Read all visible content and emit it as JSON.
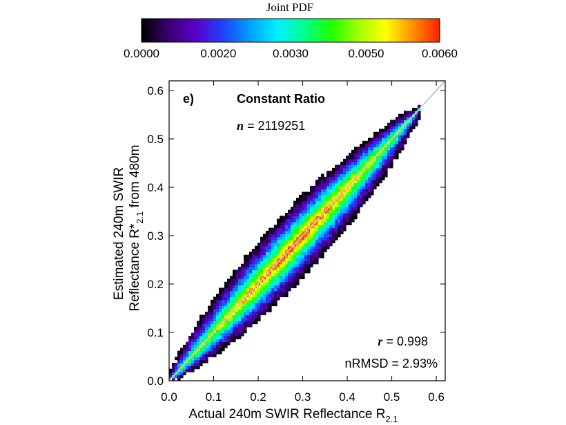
{
  "colorbar": {
    "title": "Joint PDF",
    "ticks": [
      "0.0000",
      "0.0020",
      "0.0030",
      "0.0050",
      "0.0060"
    ],
    "colors": [
      "#000000",
      "#3a0070",
      "#5a00c8",
      "#2040ff",
      "#00a0ff",
      "#00f0ff",
      "#00ff90",
      "#20ff00",
      "#a0ff00",
      "#ffff00",
      "#ff9000",
      "#ff2000"
    ]
  },
  "chart_data": {
    "type": "heatmap",
    "panel_label": "e)",
    "title": "Constant Ratio",
    "n_label": "n",
    "n_value": "= 2119251",
    "r_label": "r",
    "r_value": "= 0.998",
    "nrmsd": "nRMSD = 2.93%",
    "xlabel": "Actual 240m SWIR Reflectance R",
    "xlabel_sub": "2.1",
    "ylabel_line1": "Estimated 240m SWIR",
    "ylabel_line2": "Reflectance R*",
    "ylabel_sub": "2.1",
    "ylabel_tail": " from 480m",
    "xlim": [
      0.0,
      0.62
    ],
    "ylim": [
      0.0,
      0.62
    ],
    "xticks": [
      "0.0",
      "0.1",
      "0.2",
      "0.3",
      "0.4",
      "0.5",
      "0.6"
    ],
    "yticks": [
      "0.0",
      "0.1",
      "0.2",
      "0.3",
      "0.4",
      "0.5",
      "0.6"
    ],
    "one_to_one_line": true,
    "grid": false,
    "pdf_range": [
      0.0,
      0.006
    ]
  }
}
